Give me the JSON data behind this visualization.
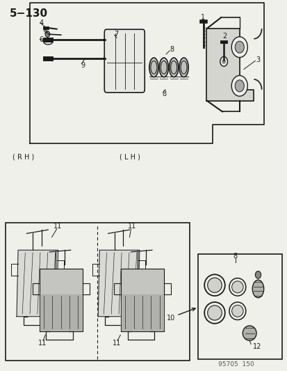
{
  "title": "5−130",
  "bg_color": "#f0f0eb",
  "line_color": "#1a1a1a",
  "text_color": "#1a1a1a",
  "watermark": "95705  150",
  "watermark_color": "#555555"
}
